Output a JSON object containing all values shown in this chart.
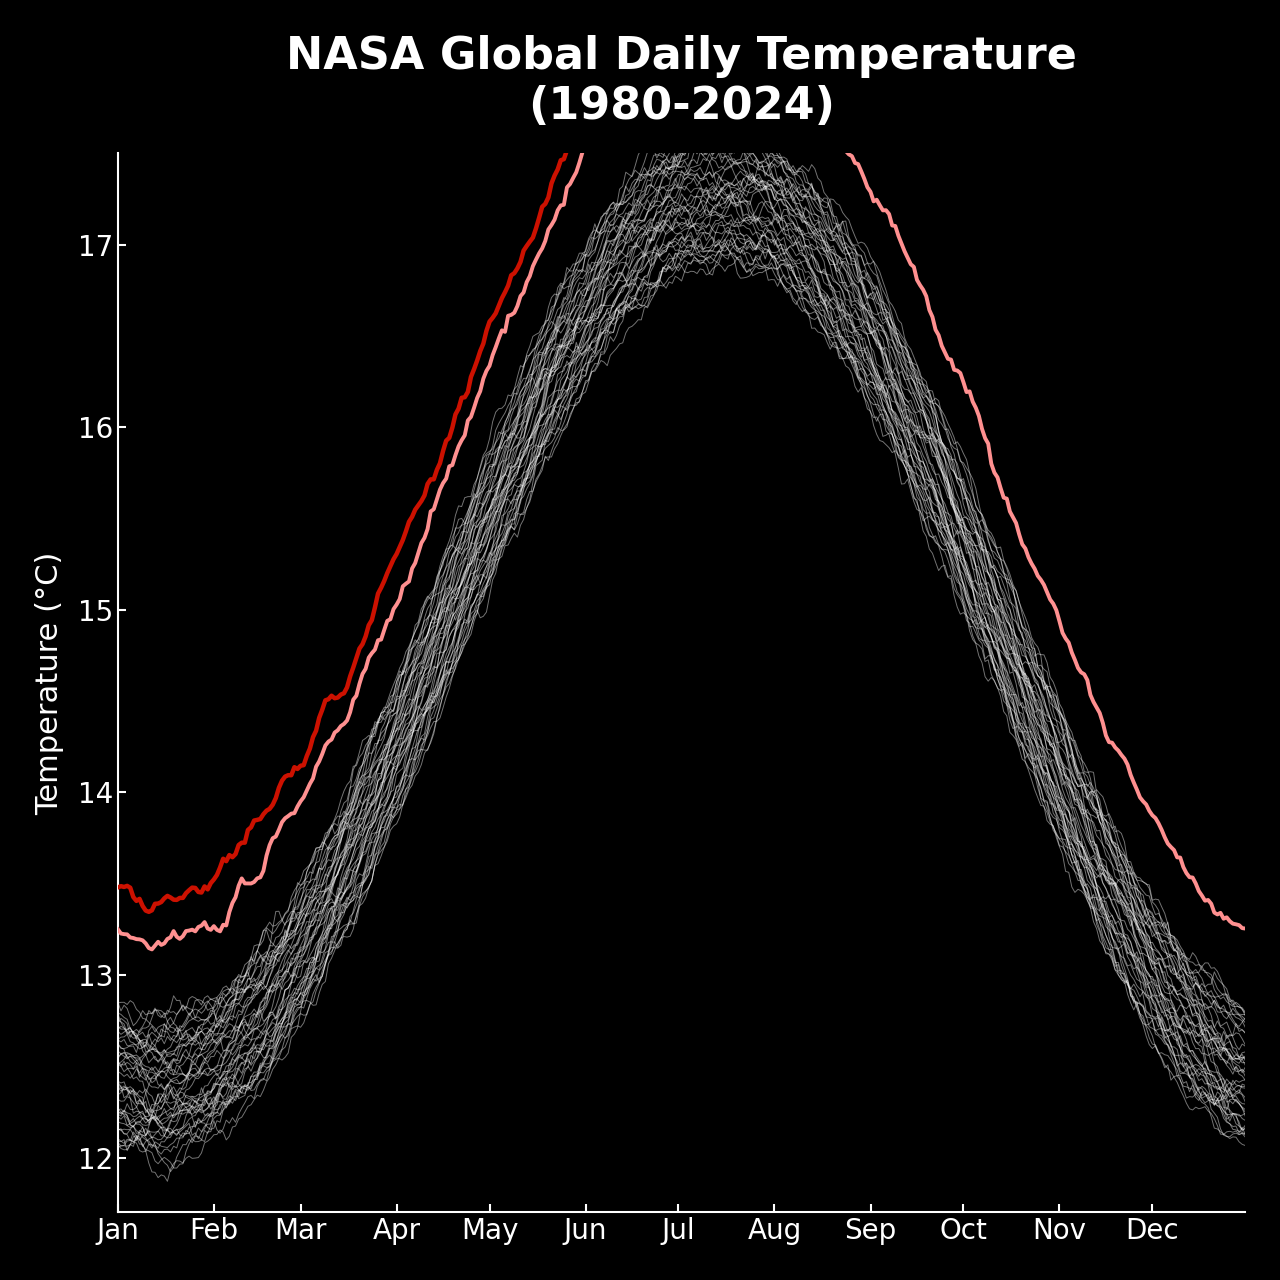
{
  "title_line1": "NASA Global Daily Temperature",
  "title_line2": "(1980-2024)",
  "ylabel": "Temperature (°C)",
  "background_color": "#000000",
  "text_color": "#ffffff",
  "spine_color": "#ffffff",
  "historical_color": "#ffffff",
  "year2023_color": "#ff9090",
  "year2024_color": "#cc1100",
  "geosfp_color": "#7722cc",
  "historical_alpha": 0.45,
  "historical_linewidth": 0.7,
  "year2023_linewidth": 2.8,
  "year2024_linewidth": 3.2,
  "geosfp_linewidth": 3.2,
  "ylim_min": 11.7,
  "ylim_max": 17.5,
  "yticks": [
    12,
    13,
    14,
    15,
    16,
    17
  ],
  "months": [
    "Jan",
    "Feb",
    "Mar",
    "Apr",
    "May",
    "Jun",
    "Jul",
    "Aug",
    "Sep",
    "Oct",
    "Nov",
    "Dec"
  ],
  "title_fontsize": 32,
  "axis_fontsize": 22,
  "tick_fontsize": 20,
  "seed": 42
}
